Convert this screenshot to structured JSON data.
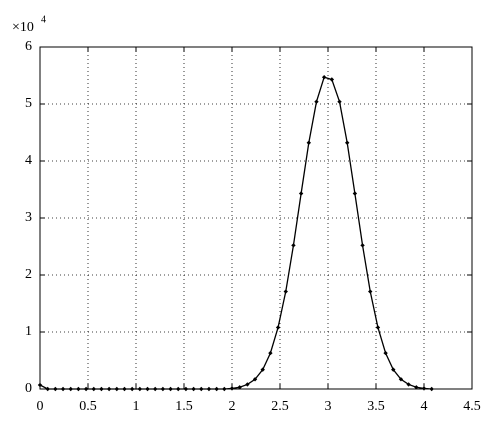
{
  "chart_data": {
    "type": "line",
    "y_scale_base": "×10",
    "y_scale_exponent": "4",
    "x": [
      0,
      0.08,
      0.16,
      0.24,
      0.32,
      0.4,
      0.48,
      0.56,
      0.64,
      0.72,
      0.8,
      0.88,
      0.96,
      1.04,
      1.12,
      1.2,
      1.28,
      1.36,
      1.44,
      1.52,
      1.6,
      1.68,
      1.76,
      1.84,
      1.92,
      2.0,
      2.08,
      2.16,
      2.24,
      2.32,
      2.4,
      2.48,
      2.56,
      2.64,
      2.72,
      2.8,
      2.88,
      2.96,
      3.04,
      3.12,
      3.2,
      3.28,
      3.36,
      3.44,
      3.52,
      3.6,
      3.68,
      3.76,
      3.84,
      3.92,
      4.0,
      4.08
    ],
    "series": [
      {
        "color": "#000000",
        "values": [
          0.07,
          0,
          0,
          0,
          0,
          0,
          0,
          0,
          0,
          0,
          0,
          0,
          0,
          0,
          0,
          0,
          0,
          0,
          0,
          0,
          0,
          0,
          0,
          0,
          0,
          0.01,
          0.03,
          0.08,
          0.17,
          0.34,
          0.63,
          1.08,
          1.71,
          2.52,
          3.43,
          4.32,
          5.04,
          5.47,
          5.43,
          5.04,
          4.32,
          3.43,
          2.52,
          1.71,
          1.08,
          0.63,
          0.34,
          0.17,
          0.08,
          0.03,
          0.01,
          0
        ]
      }
    ],
    "xlim": [
      0,
      4.5
    ],
    "xticks": [
      0,
      0.5,
      1,
      1.5,
      2,
      2.5,
      3,
      3.5,
      4,
      4.5
    ],
    "ylim": [
      0,
      6
    ],
    "yticks": [
      0,
      1,
      2,
      3,
      4,
      5,
      6
    ],
    "grid": true
  }
}
